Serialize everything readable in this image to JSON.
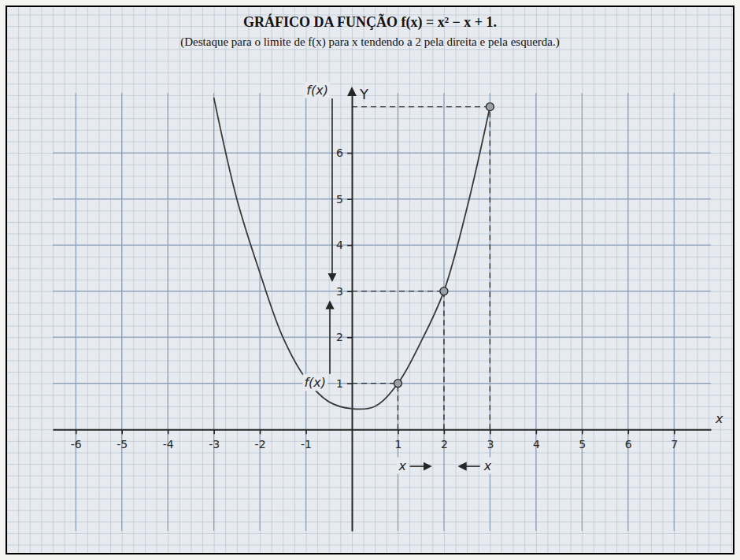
{
  "chart_data": {
    "type": "line",
    "title": "GRÁFICO DA FUNÇÃO f(x) = x² − x + 1.",
    "subtitle": "(Destaque para o limite de f(x) para x tendendo a 2 pela direita e pela esquerda.)",
    "x_label": "x",
    "y_label": "Y",
    "x": [
      -3,
      -2.5,
      -2,
      -1.5,
      -1,
      -0.5,
      0,
      0.5,
      1,
      1.5,
      2,
      2.5,
      3
    ],
    "values": [
      7.2,
      5.0,
      3.4,
      2.0,
      1.1,
      0.6,
      0.45,
      0.5,
      1,
      1.9,
      3,
      4.8,
      7
    ],
    "color": "#3a3a3a",
    "line_style": "solid",
    "points": {
      "x": [
        1,
        2,
        3
      ],
      "y": [
        1,
        3,
        7
      ]
    },
    "annotations": [
      {
        "text": "f(x)",
        "x": -0.75,
        "y": 7.35
      },
      {
        "text": "f(x)",
        "x": -0.8,
        "y": 1
      },
      {
        "text": "x",
        "x": 1.1,
        "y": -0.8
      },
      {
        "text": "x",
        "x": 2.95,
        "y": -0.8
      }
    ],
    "xlim": [
      -6.5,
      7.8
    ],
    "ylim": [
      -2.2,
      7.3
    ],
    "xticks": [
      -6,
      -5,
      -4,
      -3,
      -2,
      -1,
      1,
      2,
      3,
      4,
      5,
      6,
      7
    ],
    "yticks": [
      1,
      2,
      3,
      4,
      5,
      6
    ],
    "grid": true
  }
}
